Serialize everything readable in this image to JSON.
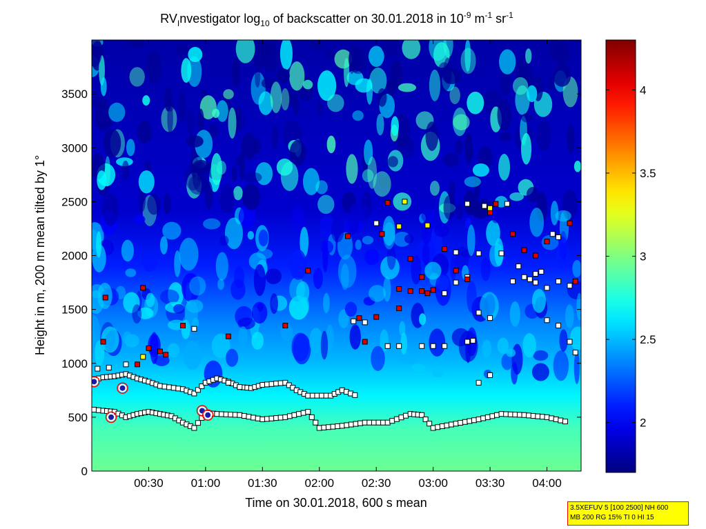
{
  "chart_data": {
    "type": "heatmap",
    "title": {
      "prefix": "RV",
      "sub_i": "I",
      "mid": "nvestigator log",
      "sub_10": "10",
      "after_log": " of backscatter on 30.01.2018 in 10",
      "sup_exp": "-9",
      "units_m": " m",
      "sup_m": "-1",
      "units_sr": " sr",
      "sup_sr": "-1"
    },
    "xlabel": "Time on 30.01.2018, 600 s mean",
    "ylabel": "Height in m, 200 m mean tilted by 1°",
    "xlim_hours": [
      0.0,
      4.3
    ],
    "ylim": [
      0,
      4000
    ],
    "xticks": [
      {
        "value": 0.5,
        "label": "00:30"
      },
      {
        "value": 1.0,
        "label": "01:00"
      },
      {
        "value": 1.5,
        "label": "01:30"
      },
      {
        "value": 2.0,
        "label": "02:00"
      },
      {
        "value": 2.5,
        "label": "02:30"
      },
      {
        "value": 3.0,
        "label": "03:00"
      },
      {
        "value": 3.5,
        "label": "03:30"
      },
      {
        "value": 4.0,
        "label": "04:00"
      }
    ],
    "yticks": [
      {
        "value": 0,
        "label": "0"
      },
      {
        "value": 500,
        "label": "500"
      },
      {
        "value": 1000,
        "label": "1000"
      },
      {
        "value": 1500,
        "label": "1500"
      },
      {
        "value": 2000,
        "label": "2000"
      },
      {
        "value": 2500,
        "label": "2500"
      },
      {
        "value": 3000,
        "label": "3000"
      },
      {
        "value": 3500,
        "label": "3500"
      }
    ],
    "colorbar": {
      "range": [
        1.7,
        4.3
      ],
      "colormap": "jet",
      "ticks": [
        {
          "value": 2,
          "label": "2"
        },
        {
          "value": 2.5,
          "label": "2.5"
        },
        {
          "value": 3,
          "label": "3"
        },
        {
          "value": 3.5,
          "label": "3.5"
        },
        {
          "value": 4,
          "label": "4"
        }
      ]
    },
    "field_levels": [
      {
        "height_m": 0,
        "value": 2.95
      },
      {
        "height_m": 400,
        "value": 2.85
      },
      {
        "height_m": 700,
        "value": 2.65
      },
      {
        "height_m": 1000,
        "value": 2.5
      },
      {
        "height_m": 1400,
        "value": 2.35
      },
      {
        "height_m": 1900,
        "value": 2.1
      },
      {
        "height_m": 2400,
        "value": 1.9
      },
      {
        "height_m": 4000,
        "value": 1.8
      }
    ],
    "lower_layer": [
      [
        0.02,
        570
      ],
      [
        0.1,
        560
      ],
      [
        0.2,
        550
      ],
      [
        0.3,
        500
      ],
      [
        0.4,
        530
      ],
      [
        0.5,
        550
      ],
      [
        0.6,
        530
      ],
      [
        0.7,
        510
      ],
      [
        0.8,
        450
      ],
      [
        0.9,
        400
      ],
      [
        1.0,
        540
      ],
      [
        1.1,
        530
      ],
      [
        1.3,
        520
      ],
      [
        1.5,
        480
      ],
      [
        1.7,
        500
      ],
      [
        1.9,
        550
      ],
      [
        2.0,
        400
      ],
      [
        2.2,
        420
      ],
      [
        2.4,
        450
      ],
      [
        2.6,
        450
      ],
      [
        2.8,
        530
      ],
      [
        2.9,
        520
      ],
      [
        3.0,
        400
      ],
      [
        3.2,
        440
      ],
      [
        3.4,
        480
      ],
      [
        3.6,
        530
      ],
      [
        3.8,
        520
      ],
      [
        4.0,
        500
      ],
      [
        4.2,
        450
      ]
    ],
    "upper_layer": [
      [
        0.02,
        850
      ],
      [
        0.1,
        870
      ],
      [
        0.2,
        880
      ],
      [
        0.3,
        900
      ],
      [
        0.4,
        860
      ],
      [
        0.5,
        830
      ],
      [
        0.6,
        790
      ],
      [
        0.8,
        760
      ],
      [
        0.9,
        720
      ],
      [
        1.0,
        820
      ],
      [
        1.1,
        860
      ],
      [
        1.2,
        830
      ],
      [
        1.3,
        780
      ],
      [
        1.4,
        770
      ],
      [
        1.5,
        800
      ],
      [
        1.7,
        820
      ],
      [
        1.8,
        750
      ],
      [
        1.9,
        700
      ],
      [
        2.1,
        700
      ],
      [
        2.2,
        750
      ],
      [
        2.35,
        690
      ]
    ],
    "points_white": [
      [
        0.05,
        950
      ],
      [
        0.15,
        960
      ],
      [
        0.3,
        990
      ],
      [
        0.9,
        1320
      ],
      [
        1.2,
        820
      ],
      [
        1.3,
        780
      ],
      [
        2.3,
        1390
      ],
      [
        2.4,
        1380
      ],
      [
        2.5,
        2300
      ],
      [
        2.6,
        1160
      ],
      [
        2.7,
        1160
      ],
      [
        2.9,
        1160
      ],
      [
        3.0,
        1160
      ],
      [
        3.1,
        1160
      ],
      [
        3.3,
        1200
      ],
      [
        3.35,
        1210
      ],
      [
        3.4,
        820
      ],
      [
        3.5,
        890
      ],
      [
        3.1,
        1650
      ],
      [
        3.2,
        1750
      ],
      [
        3.3,
        1800
      ],
      [
        3.4,
        1470
      ],
      [
        3.5,
        1420
      ],
      [
        3.6,
        2020
      ],
      [
        3.7,
        1760
      ],
      [
        3.8,
        1800
      ],
      [
        3.9,
        1750
      ],
      [
        4.0,
        1700
      ],
      [
        4.1,
        1760
      ],
      [
        4.2,
        1720
      ],
      [
        3.2,
        2030
      ],
      [
        3.4,
        2020
      ],
      [
        4.0,
        1400
      ],
      [
        4.1,
        1350
      ],
      [
        4.2,
        1200
      ],
      [
        4.25,
        1100
      ],
      [
        3.5,
        2440
      ],
      [
        3.65,
        2480
      ],
      [
        3.45,
        2460
      ],
      [
        4.05,
        2200
      ],
      [
        4.1,
        2170
      ],
      [
        3.3,
        2480
      ],
      [
        3.9,
        1830
      ],
      [
        3.95,
        1850
      ],
      [
        3.75,
        1900
      ],
      [
        3.85,
        1780
      ]
    ],
    "points_red": [
      [
        0.1,
        1200
      ],
      [
        0.12,
        1610
      ],
      [
        0.45,
        1700
      ],
      [
        0.5,
        1140
      ],
      [
        0.6,
        1110
      ],
      [
        0.65,
        1080
      ],
      [
        0.8,
        1350
      ],
      [
        2.25,
        2180
      ],
      [
        1.9,
        1860
      ],
      [
        1.7,
        1350
      ],
      [
        2.35,
        1420
      ],
      [
        2.55,
        2200
      ],
      [
        2.8,
        1970
      ],
      [
        2.9,
        1800
      ],
      [
        2.95,
        1650
      ],
      [
        3.1,
        2060
      ],
      [
        3.2,
        1860
      ],
      [
        3.3,
        1780
      ],
      [
        3.5,
        2400
      ],
      [
        3.7,
        2200
      ],
      [
        3.8,
        2050
      ],
      [
        3.9,
        2000
      ],
      [
        4.0,
        2130
      ],
      [
        4.2,
        2300
      ],
      [
        4.25,
        1760
      ],
      [
        2.7,
        1690
      ],
      [
        2.8,
        1670
      ],
      [
        2.9,
        1670
      ],
      [
        3.0,
        1680
      ],
      [
        2.5,
        1430
      ],
      [
        2.7,
        1510
      ],
      [
        2.6,
        2490
      ],
      [
        1.2,
        1250
      ],
      [
        0.4,
        990
      ],
      [
        2.4,
        1200
      ],
      [
        3.55,
        2480
      ]
    ],
    "points_yellow": [
      [
        0.45,
        1060
      ],
      [
        2.95,
        2280
      ],
      [
        2.75,
        2500
      ],
      [
        2.7,
        2270
      ],
      [
        3.5,
        2440
      ]
    ],
    "points_circled": [
      [
        0.02,
        830
      ],
      [
        0.17,
        500
      ],
      [
        0.27,
        770
      ],
      [
        0.97,
        560
      ],
      [
        1.02,
        520
      ]
    ],
    "info_box": {
      "line1": "3.5XEFUV 5 [100 2500] NH 600",
      "line2": "MB 200 RG 15% TI 0 HI 15"
    }
  }
}
